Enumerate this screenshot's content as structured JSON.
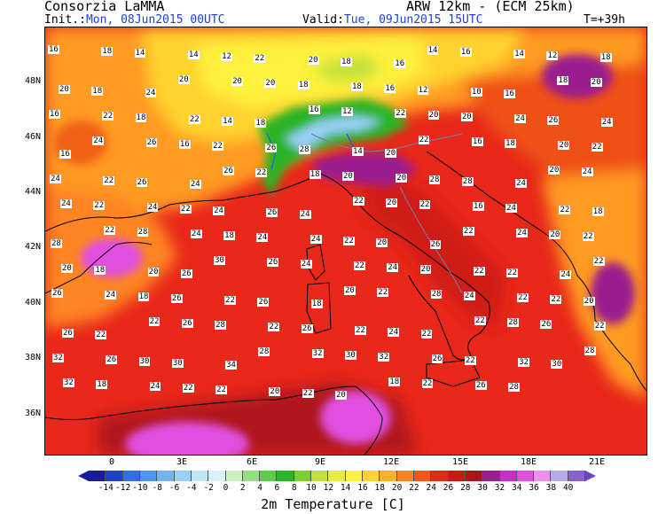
{
  "header": {
    "org": "Consorzia LaMMA",
    "model": "ARW 12km - (ECM 25km)",
    "init_label": "Init.:",
    "init_value": "Mon, 08Jun2015 00UTC",
    "valid_label": "Valid:",
    "valid_value": "Tue, 09Jun2015 15UTC",
    "lead": "T=+39h"
  },
  "axes": {
    "lat_ticks": [
      "48N",
      "46N",
      "44N",
      "42N",
      "40N",
      "38N",
      "36N"
    ],
    "lon_ticks": [
      "0",
      "3E",
      "6E",
      "9E",
      "12E",
      "15E",
      "18E",
      "21E"
    ]
  },
  "colorbar": {
    "title": "2m Temperature [C]",
    "labels": [
      "-14",
      "-12",
      "-10",
      "-8",
      "-6",
      "-4",
      "-2",
      "0",
      "2",
      "4",
      "6",
      "8",
      "10",
      "12",
      "14",
      "16",
      "18",
      "20",
      "22",
      "24",
      "26",
      "28",
      "30",
      "32",
      "34",
      "36",
      "38",
      "40"
    ],
    "colors": [
      "#1a1aa0",
      "#1f3fd0",
      "#2f6ee8",
      "#4f95f0",
      "#72b4f5",
      "#98cff7",
      "#bfe6f8",
      "#d8f2f8",
      "#c8f0c0",
      "#94e080",
      "#5ccc4a",
      "#2ab428",
      "#7ccf2f",
      "#bfe03a",
      "#e8ec3c",
      "#fff13c",
      "#ffd32e",
      "#ffb028",
      "#ff8420",
      "#f65418",
      "#e02a12",
      "#c81810",
      "#b0121a",
      "#9b1e8e",
      "#c430c4",
      "#e050e0",
      "#f08ef0",
      "#b8a8e8",
      "#8860d0"
    ]
  },
  "temp_labels": [
    {
      "t": "16"
    },
    {
      "t": "18"
    },
    {
      "t": "14"
    },
    {
      "t": "14"
    },
    {
      "t": "12"
    },
    {
      "t": "22"
    },
    {
      "t": "20"
    },
    {
      "t": "18"
    },
    {
      "t": "16"
    },
    {
      "t": "14"
    },
    {
      "t": "16"
    },
    {
      "t": "14"
    },
    {
      "t": "12"
    },
    {
      "t": "18"
    },
    {
      "t": "20"
    },
    {
      "t": "18"
    },
    {
      "t": "24"
    },
    {
      "t": "20"
    },
    {
      "t": "20"
    },
    {
      "t": "20"
    },
    {
      "t": "18"
    },
    {
      "t": "18"
    },
    {
      "t": "16"
    },
    {
      "t": "12"
    },
    {
      "t": "10"
    },
    {
      "t": "16"
    },
    {
      "t": "18"
    },
    {
      "t": "20"
    },
    {
      "t": "16"
    },
    {
      "t": "22"
    },
    {
      "t": "18"
    },
    {
      "t": "22"
    },
    {
      "t": "14"
    },
    {
      "t": "18"
    },
    {
      "t": "16"
    },
    {
      "t": "12"
    },
    {
      "t": "22"
    },
    {
      "t": "20"
    },
    {
      "t": "20"
    },
    {
      "t": "24"
    },
    {
      "t": "26"
    },
    {
      "t": "24"
    },
    {
      "t": "16"
    },
    {
      "t": "24"
    },
    {
      "t": "26"
    },
    {
      "t": "16"
    },
    {
      "t": "22"
    },
    {
      "t": "26"
    },
    {
      "t": "28"
    },
    {
      "t": "14"
    },
    {
      "t": "20"
    },
    {
      "t": "22"
    },
    {
      "t": "16"
    },
    {
      "t": "18"
    },
    {
      "t": "20"
    },
    {
      "t": "22"
    },
    {
      "t": "24"
    },
    {
      "t": "22"
    },
    {
      "t": "26"
    },
    {
      "t": "24"
    },
    {
      "t": "26"
    },
    {
      "t": "22"
    },
    {
      "t": "18"
    },
    {
      "t": "20"
    },
    {
      "t": "20"
    },
    {
      "t": "28"
    },
    {
      "t": "28"
    },
    {
      "t": "24"
    },
    {
      "t": "20"
    },
    {
      "t": "24"
    },
    {
      "t": "24"
    },
    {
      "t": "22"
    },
    {
      "t": "24"
    },
    {
      "t": "22"
    },
    {
      "t": "24"
    },
    {
      "t": "26"
    },
    {
      "t": "24"
    },
    {
      "t": "22"
    },
    {
      "t": "20"
    },
    {
      "t": "22"
    },
    {
      "t": "16"
    },
    {
      "t": "24"
    },
    {
      "t": "22"
    },
    {
      "t": "18"
    },
    {
      "t": "28"
    },
    {
      "t": "22"
    },
    {
      "t": "28"
    },
    {
      "t": "24"
    },
    {
      "t": "18"
    },
    {
      "t": "24"
    },
    {
      "t": "24"
    },
    {
      "t": "22"
    },
    {
      "t": "20"
    },
    {
      "t": "26"
    },
    {
      "t": "22"
    },
    {
      "t": "24"
    },
    {
      "t": "20"
    },
    {
      "t": "22"
    },
    {
      "t": "20"
    },
    {
      "t": "18"
    },
    {
      "t": "20"
    },
    {
      "t": "26"
    },
    {
      "t": "30"
    },
    {
      "t": "26"
    },
    {
      "t": "24"
    },
    {
      "t": "22"
    },
    {
      "t": "24"
    },
    {
      "t": "20"
    },
    {
      "t": "22"
    },
    {
      "t": "22"
    },
    {
      "t": "24"
    },
    {
      "t": "22"
    },
    {
      "t": "26"
    },
    {
      "t": "24"
    },
    {
      "t": "18"
    },
    {
      "t": "26"
    },
    {
      "t": "22"
    },
    {
      "t": "26"
    },
    {
      "t": "18"
    },
    {
      "t": "20"
    },
    {
      "t": "22"
    },
    {
      "t": "28"
    },
    {
      "t": "24"
    },
    {
      "t": "22"
    },
    {
      "t": "22"
    },
    {
      "t": "20"
    },
    {
      "t": "26"
    },
    {
      "t": "22"
    },
    {
      "t": "22"
    },
    {
      "t": "26"
    },
    {
      "t": "28"
    },
    {
      "t": "22"
    },
    {
      "t": "26"
    },
    {
      "t": "22"
    },
    {
      "t": "24"
    },
    {
      "t": "22"
    },
    {
      "t": "22"
    },
    {
      "t": "28"
    },
    {
      "t": "26"
    },
    {
      "t": "22"
    },
    {
      "t": "32"
    },
    {
      "t": "26"
    },
    {
      "t": "30"
    },
    {
      "t": "30"
    },
    {
      "t": "34"
    },
    {
      "t": "28"
    },
    {
      "t": "32"
    },
    {
      "t": "30"
    },
    {
      "t": "32"
    },
    {
      "t": "26"
    },
    {
      "t": "22"
    },
    {
      "t": "32"
    },
    {
      "t": "30"
    },
    {
      "t": "28"
    },
    {
      "t": "32"
    },
    {
      "t": "18"
    },
    {
      "t": "24"
    },
    {
      "t": "22"
    },
    {
      "t": "22"
    },
    {
      "t": "20"
    },
    {
      "t": "22"
    },
    {
      "t": "20"
    },
    {
      "t": "18"
    },
    {
      "t": "22"
    },
    {
      "t": "26"
    },
    {
      "t": "28"
    }
  ]
}
